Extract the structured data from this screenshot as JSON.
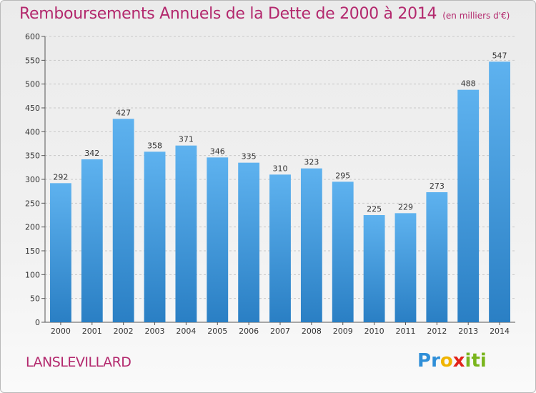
{
  "chart_data": {
    "type": "bar",
    "title": "Remboursements Annuels de la Dette de 2000 à 2014",
    "subtitle": "(en milliers d'€)",
    "categories": [
      "2000",
      "2001",
      "2002",
      "2003",
      "2004",
      "2005",
      "2006",
      "2007",
      "2008",
      "2009",
      "2010",
      "2011",
      "2012",
      "2013",
      "2014"
    ],
    "values": [
      292,
      342,
      427,
      358,
      371,
      346,
      335,
      310,
      323,
      295,
      225,
      229,
      273,
      488,
      547
    ],
    "ylim": [
      0,
      600
    ],
    "yticks": [
      0,
      50,
      100,
      150,
      200,
      250,
      300,
      350,
      400,
      450,
      500,
      550,
      600
    ],
    "grid": true,
    "bar_color": "#4a9ee0"
  },
  "footer": {
    "commune": "LANSLEVILLARD",
    "logo_letters": [
      "P",
      "r",
      "o",
      "x",
      "i",
      "t",
      "i"
    ],
    "logo_colors": [
      "#2f8fd8",
      "#2f8fd8",
      "#f0b400",
      "#e2231a",
      "#7ab51d",
      "#7ab51d",
      "#7ab51d"
    ]
  }
}
